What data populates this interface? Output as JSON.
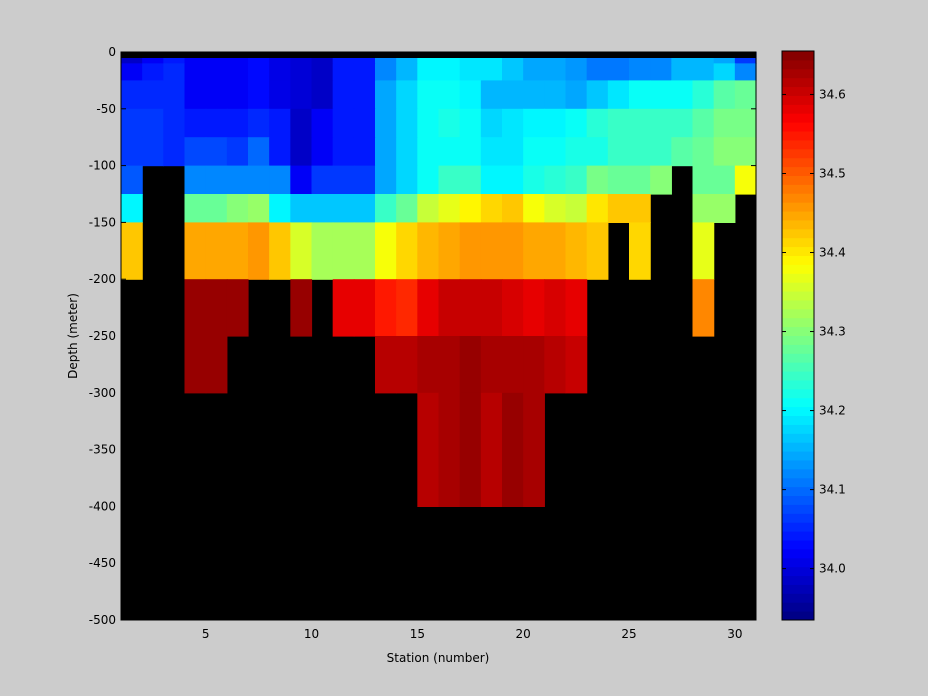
{
  "chart_data": {
    "type": "heatmap",
    "title": "",
    "xlabel": "Station (number)",
    "ylabel": "Depth (meter)",
    "xlim": [
      1,
      31
    ],
    "ylim": [
      -500,
      0
    ],
    "x_ticks": [
      5,
      10,
      15,
      20,
      25,
      30
    ],
    "y_ticks": [
      0,
      -50,
      -100,
      -150,
      -200,
      -250,
      -300,
      -350,
      -400,
      -450,
      -500
    ],
    "colorbar": {
      "clim": [
        33.935,
        34.655
      ],
      "ticks": [
        34.0,
        34.1,
        34.2,
        34.3,
        34.4,
        34.5,
        34.6
      ],
      "colormap": "jet",
      "levels": 64
    },
    "missing_color": "#000000",
    "stations": [
      1,
      2,
      3,
      4,
      5,
      6,
      7,
      8,
      9,
      10,
      11,
      12,
      13,
      14,
      15,
      16,
      17,
      18,
      19,
      20,
      21,
      22,
      23,
      24,
      25,
      26,
      27,
      28,
      29,
      30
    ],
    "depth_rows": [
      {
        "depth": 0,
        "values": [
          33.99,
          34.02,
          34.04,
          34.02,
          34.02,
          34.02,
          34.03,
          34.01,
          34.0,
          33.99,
          34.04,
          34.04,
          34.12,
          34.15,
          34.2,
          34.2,
          34.19,
          34.19,
          34.17,
          34.14,
          34.14,
          34.13,
          34.11,
          34.11,
          34.12,
          34.12,
          34.15,
          34.16,
          34.14,
          34.07
        ]
      },
      {
        "depth": -10,
        "values": [
          34.02,
          34.04,
          34.05,
          34.02,
          34.02,
          34.02,
          34.03,
          34.01,
          34.0,
          33.99,
          34.04,
          34.04,
          34.12,
          34.15,
          34.2,
          34.2,
          34.19,
          34.19,
          34.17,
          34.14,
          34.14,
          34.13,
          34.11,
          34.11,
          34.12,
          34.12,
          34.15,
          34.16,
          34.18,
          34.12
        ]
      },
      {
        "depth": -25,
        "values": [
          34.05,
          34.05,
          34.05,
          34.02,
          34.02,
          34.02,
          34.03,
          34.01,
          34.0,
          33.99,
          34.04,
          34.04,
          34.14,
          34.18,
          34.21,
          34.21,
          34.2,
          34.16,
          34.16,
          34.16,
          34.15,
          34.14,
          34.17,
          34.19,
          34.21,
          34.21,
          34.21,
          34.23,
          34.27,
          34.28
        ]
      },
      {
        "depth": -50,
        "values": [
          34.07,
          34.07,
          34.05,
          34.04,
          34.04,
          34.04,
          34.05,
          34.04,
          33.99,
          34.02,
          34.04,
          34.04,
          34.14,
          34.18,
          34.21,
          34.22,
          34.21,
          34.18,
          34.19,
          34.2,
          34.2,
          34.21,
          34.23,
          34.24,
          34.25,
          34.25,
          34.25,
          34.27,
          34.29,
          34.29
        ]
      },
      {
        "depth": -75,
        "values": [
          34.07,
          34.07,
          34.05,
          34.08,
          34.08,
          34.06,
          34.1,
          34.04,
          33.99,
          34.02,
          34.04,
          34.04,
          34.14,
          34.18,
          34.21,
          34.21,
          34.21,
          34.19,
          34.19,
          34.21,
          34.21,
          34.22,
          34.22,
          34.24,
          34.25,
          34.25,
          34.27,
          34.28,
          34.3,
          34.3
        ]
      },
      {
        "depth": -100,
        "values": [
          34.09,
          null,
          null,
          34.12,
          34.12,
          34.12,
          34.12,
          34.12,
          34.02,
          34.06,
          34.06,
          34.06,
          34.14,
          34.18,
          34.21,
          34.24,
          34.24,
          34.2,
          34.2,
          34.22,
          34.23,
          34.24,
          34.29,
          34.28,
          34.28,
          34.3,
          null,
          34.28,
          34.28,
          34.38
        ]
      },
      {
        "depth": -125,
        "values": [
          34.2,
          null,
          null,
          34.28,
          34.28,
          34.3,
          34.31,
          34.2,
          34.17,
          34.17,
          34.17,
          34.17,
          34.24,
          34.28,
          34.35,
          34.37,
          34.39,
          34.41,
          34.42,
          34.38,
          34.36,
          34.34,
          34.4,
          34.42,
          34.42,
          null,
          null,
          34.31,
          34.31,
          null
        ]
      },
      {
        "depth": -150,
        "values": [
          34.43,
          null,
          null,
          34.45,
          34.45,
          34.45,
          34.46,
          34.42,
          34.36,
          34.32,
          34.32,
          34.32,
          34.38,
          34.41,
          34.44,
          34.45,
          34.46,
          34.46,
          34.46,
          34.45,
          34.45,
          34.44,
          34.43,
          null,
          34.41,
          null,
          null,
          34.37,
          null,
          null
        ]
      },
      {
        "depth": -200,
        "values": [
          null,
          null,
          null,
          34.64,
          34.64,
          34.64,
          null,
          null,
          34.64,
          null,
          34.58,
          34.58,
          34.55,
          34.54,
          34.58,
          34.6,
          34.6,
          34.6,
          34.59,
          34.58,
          34.59,
          34.58,
          null,
          null,
          null,
          null,
          null,
          34.47,
          null,
          null
        ]
      },
      {
        "depth": -250,
        "values": [
          null,
          null,
          null,
          34.64,
          34.64,
          null,
          null,
          null,
          null,
          null,
          null,
          null,
          34.62,
          34.62,
          34.63,
          34.63,
          34.64,
          34.63,
          34.63,
          34.63,
          34.62,
          34.61,
          null,
          null,
          null,
          null,
          null,
          null,
          null,
          null
        ]
      },
      {
        "depth": -300,
        "values": [
          null,
          null,
          null,
          null,
          null,
          null,
          null,
          null,
          null,
          null,
          null,
          null,
          null,
          null,
          34.62,
          34.63,
          34.64,
          34.62,
          34.64,
          34.63,
          null,
          null,
          null,
          null,
          null,
          null,
          null,
          null,
          null,
          null
        ]
      },
      {
        "depth": -400,
        "values": [
          null,
          null,
          null,
          null,
          null,
          null,
          null,
          null,
          null,
          null,
          null,
          null,
          null,
          null,
          null,
          null,
          null,
          null,
          null,
          null,
          null,
          null,
          null,
          null,
          null,
          null,
          null,
          null,
          null,
          null
        ]
      }
    ]
  }
}
